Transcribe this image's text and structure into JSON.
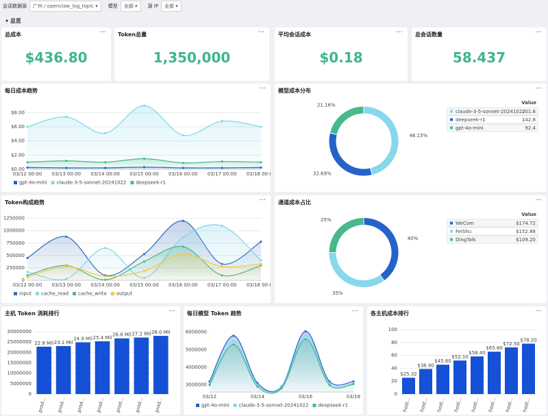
{
  "filters": [
    {
      "label": "会话数据源",
      "value": "广州 / openclaw_log_topic"
    },
    {
      "label": "模型",
      "value": "全部"
    },
    {
      "label": "源 IP",
      "value": "全部"
    }
  ],
  "section": "总览",
  "menu": "···",
  "kpis": [
    {
      "title": "总成本",
      "value": "$436.80"
    },
    {
      "title": "Token总量",
      "value": "1,350,000"
    },
    {
      "title": "平均会话成本",
      "value": "$0.18"
    },
    {
      "title": "总会话数量",
      "value": "58.437"
    }
  ],
  "chart_data": [
    {
      "type": "line",
      "title": "每日成本趋势",
      "smooth": true,
      "area": true,
      "grid": true,
      "categories": [
        "03/12 00:00",
        "03/13 00:00",
        "03/14 00:00",
        "03/15 00:00",
        "03/16 00:00",
        "03/17 00:00",
        "03/18 00:00"
      ],
      "series": [
        {
          "name": "gpt-4o-mini",
          "color": "#2463c9",
          "values": [
            0.25,
            0.2,
            0.2,
            0.3,
            0.2,
            0.2,
            0.25
          ]
        },
        {
          "name": "claude-3-5-sonnet-20241022",
          "color": "#86d8ec",
          "values": [
            6,
            7.4,
            5.1,
            9,
            4.8,
            6.8,
            6
          ]
        },
        {
          "name": "deepseek-r1",
          "color": "#47b98c",
          "values": [
            1,
            1.2,
            1,
            1.5,
            0.9,
            1.1,
            1
          ]
        }
      ],
      "ylim": [
        0,
        9.2
      ],
      "yticks": [
        {
          "value": 0,
          "label": "$0.00"
        },
        {
          "value": 2,
          "label": "$2.00"
        },
        {
          "value": 4,
          "label": "$4.00"
        },
        {
          "value": 6,
          "label": "$6.00"
        },
        {
          "value": 8,
          "label": "$8.00"
        }
      ]
    },
    {
      "type": "pie",
      "title": "模型成本分布",
      "donut": true,
      "legend_header": "Value",
      "categories": [
        "claude-3-5-sonnet-20241022",
        "deepseek-r1",
        "gpt-4o-mini"
      ],
      "values": [
        201.6,
        142.8,
        92.4
      ],
      "colors": [
        "#86d8ec",
        "#2463c9",
        "#47b98c"
      ],
      "percent_labels": [
        "46.15%",
        "32.69%",
        "21.16%"
      ]
    },
    {
      "type": "line",
      "title": "Token构成趋势",
      "smooth": true,
      "area": true,
      "grid": true,
      "categories": [
        "03/12 00:00",
        "03/13 00:00",
        "03/14 00:00",
        "03/15 00:00",
        "03/16 00:00",
        "03/17 00:00",
        "03/18 00:00"
      ],
      "series": [
        {
          "name": "input",
          "color": "#3a6fb8",
          "values": [
            450000,
            880000,
            100000,
            530000,
            1200000,
            330000,
            780000
          ]
        },
        {
          "name": "cache_read",
          "color": "#8ad6e8",
          "values": [
            170000,
            30000,
            650000,
            50000,
            870000,
            1100000,
            400000
          ]
        },
        {
          "name": "cache_write",
          "color": "#4fb98f",
          "values": [
            100000,
            300000,
            10000,
            380000,
            680000,
            100000,
            300000
          ]
        },
        {
          "name": "output",
          "color": "#f2c94c",
          "values": [
            60000,
            280000,
            80000,
            190000,
            530000,
            280000,
            330000
          ]
        }
      ],
      "ylim": [
        0,
        1300000
      ],
      "yticks": [
        0,
        250000,
        500000,
        750000,
        1000000,
        1250000
      ]
    },
    {
      "type": "pie",
      "title": "通道成本占比",
      "donut": true,
      "legend_header": "Value",
      "categories": [
        "WeCom",
        "FeiShu",
        "DingTalk"
      ],
      "values": [
        174.72,
        152.88,
        109.2
      ],
      "value_labels": [
        "$174.72",
        "$152.88",
        "$109.20"
      ],
      "colors": [
        "#2463c9",
        "#86d8ec",
        "#47b98c"
      ],
      "percent_labels": [
        "40%",
        "35%",
        "25%"
      ]
    },
    {
      "type": "bar",
      "title": "主机 Token 消耗排行",
      "color": "#1551d6",
      "grid": true,
      "categories": [
        "prod...",
        "prod...",
        "prod...",
        "prod...",
        "prod...",
        "prod...",
        "prod..."
      ],
      "values": [
        22800000,
        23100000,
        24900000,
        25400000,
        26800000,
        27200000,
        28000000
      ],
      "value_labels": [
        "22.8 Mil",
        "23.1 Mil",
        "24.9 Mil",
        "25.4 Mil",
        "26.8 Mil",
        "27.2 Mil",
        "28.0 Mil"
      ],
      "ylim": [
        0,
        31000000
      ],
      "yticks": [
        0,
        5000000,
        10000000,
        15000000,
        20000000,
        25000000,
        30000000
      ]
    },
    {
      "type": "line",
      "title": "每日模型 Token 趋势",
      "smooth": true,
      "area": true,
      "grid": false,
      "categories": [
        "03/12",
        null,
        "03/14",
        null,
        "03/16",
        null,
        "03/18"
      ],
      "series": [
        {
          "name": "gpt-4o-mini",
          "color": "#2463c9",
          "values": [
            3200000,
            5800000,
            3100000,
            2900000,
            6050000,
            3200000,
            3200000
          ]
        },
        {
          "name": "claude-3-5-sonnet-20241022",
          "color": "#86d8ec",
          "values": [
            3100000,
            5500000,
            3000000,
            2850000,
            5800000,
            3100000,
            3100000
          ]
        },
        {
          "name": "deepseek-r1",
          "color": "#47b98c",
          "values": [
            3000000,
            5300000,
            2900000,
            2800000,
            5600000,
            3000000,
            3050000
          ]
        }
      ],
      "ylim": [
        2600000,
        6300000
      ],
      "yticks": [
        3000000,
        4000000,
        5000000,
        6000000
      ]
    },
    {
      "type": "bar",
      "title": "各主机成本排行",
      "color": "#1551d6",
      "grid": true,
      "categories": [
        "host...",
        "host...",
        "host...",
        "host...",
        "host...",
        "host...",
        "host...",
        "host..."
      ],
      "values": [
        25.32,
        38.9,
        45.6,
        52.1,
        58.4,
        65.8,
        72.5,
        78.2
      ],
      "value_labels": [
        "$25.32",
        "$38.90",
        "$45.60",
        "$52.10",
        "$58.40",
        "$65.80",
        "$72.50",
        "$78.20"
      ],
      "ylim": [
        0,
        100
      ],
      "yticks": [
        0,
        20,
        40,
        60,
        80,
        100
      ]
    }
  ]
}
